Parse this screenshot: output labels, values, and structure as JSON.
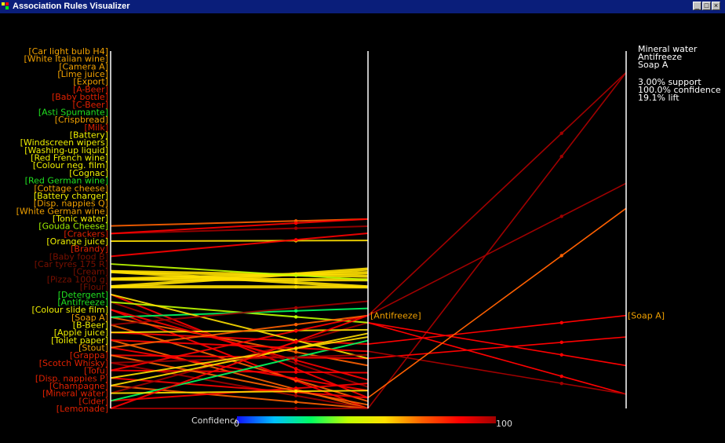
{
  "window": {
    "title": "Association Rules Visualizer",
    "buttons": [
      "_",
      "□",
      "×"
    ]
  },
  "left_items": [
    {
      "label": "Car light bulb H4",
      "color": "#f0a000"
    },
    {
      "label": "White Italian wine",
      "color": "#f0a000"
    },
    {
      "label": "Camera A",
      "color": "#f0a000"
    },
    {
      "label": "Lime juice",
      "color": "#f0a000"
    },
    {
      "label": "Export",
      "color": "#f0a000"
    },
    {
      "label": "A-Beer",
      "color": "#e02000"
    },
    {
      "label": "Baby bottle",
      "color": "#e02000"
    },
    {
      "label": "C-Beer",
      "color": "#e02000"
    },
    {
      "label": "Asti Spumante",
      "color": "#20e020"
    },
    {
      "label": "Crispbread",
      "color": "#f0a000"
    },
    {
      "label": "Milk",
      "color": "#e02000"
    },
    {
      "label": "Battery",
      "color": "#f0f000"
    },
    {
      "label": "Windscreen wipers",
      "color": "#f0f000"
    },
    {
      "label": "Washing-up liquid",
      "color": "#f0f000"
    },
    {
      "label": "Red French wine",
      "color": "#f0f000"
    },
    {
      "label": "Colour neg. film",
      "color": "#f0f000"
    },
    {
      "label": "Cognac",
      "color": "#f0f000"
    },
    {
      "label": "Red German wine",
      "color": "#20e020"
    },
    {
      "label": "Cottage cheese",
      "color": "#f0a000"
    },
    {
      "label": "Battery charger",
      "color": "#f0f000"
    },
    {
      "label": "Disp. nappies Q",
      "color": "#f0a000"
    },
    {
      "label": "White German wine",
      "color": "#f0a000"
    },
    {
      "label": "Tonic water",
      "color": "#f0f000"
    },
    {
      "label": "Gouda Cheese",
      "color": "#a0f000"
    },
    {
      "label": "Crackers",
      "color": "#e02000"
    },
    {
      "label": "Orange juice",
      "color": "#f0f000"
    },
    {
      "label": "Brandy",
      "color": "#e02000"
    },
    {
      "label": "Baby food B",
      "color": "#7a1000"
    },
    {
      "label": "Car tyres 175 R",
      "color": "#7a1000"
    },
    {
      "label": "Cream",
      "color": "#7a1000"
    },
    {
      "label": "Pizza 1000 g",
      "color": "#7a1000"
    },
    {
      "label": "Flour",
      "color": "#7a1000"
    },
    {
      "label": "Detergent",
      "color": "#20e020"
    },
    {
      "label": "Antifreeze",
      "color": "#20e020"
    },
    {
      "label": "Colour slide film",
      "color": "#f0f000"
    },
    {
      "label": "Soap A",
      "color": "#f0a000"
    },
    {
      "label": "B-Beer",
      "color": "#f0f000"
    },
    {
      "label": "Apple juice",
      "color": "#f0f000"
    },
    {
      "label": "Toilet paper",
      "color": "#f0f000"
    },
    {
      "label": "Stout",
      "color": "#f0a000"
    },
    {
      "label": "Grappa",
      "color": "#e02000"
    },
    {
      "label": "Scotch Whisky",
      "color": "#e02000"
    },
    {
      "label": "Tofu",
      "color": "#e02000"
    },
    {
      "label": "Disp. nappies P",
      "color": "#e02000"
    },
    {
      "label": "Champagne",
      "color": "#e02000"
    },
    {
      "label": "Mineral water",
      "color": "#e02000"
    },
    {
      "label": "Cider",
      "color": "#e02000"
    },
    {
      "label": "Lemonade",
      "color": "#e02000"
    }
  ],
  "middle_label": "Antifreeze",
  "right_label": "Soap A",
  "info": {
    "rule": [
      "Mineral water",
      "Antifreeze",
      "Soap A"
    ],
    "stats": [
      "3.00% support",
      "100.0% confidence",
      "19.1% lift"
    ]
  },
  "colorbar": {
    "label": "Confidence",
    "min": "0",
    "max": "100",
    "colors": [
      "#1010ff",
      "#00c0ff",
      "#00ff60",
      "#c0ff00",
      "#ffe000",
      "#ff6000",
      "#ff0000",
      "#a00000"
    ]
  },
  "rules": [
    {
      "from": 23,
      "to": 0.47,
      "conf": 70
    },
    {
      "from": 24,
      "to": 0.49,
      "conf": 95
    },
    {
      "from": 25,
      "to": 0.53,
      "conf": 60
    },
    {
      "from": 24,
      "to": 0.47,
      "conf": 90
    },
    {
      "from": 27,
      "to": 0.51,
      "conf": 85
    },
    {
      "from": 29,
      "to": 0.63,
      "conf": 55
    },
    {
      "from": 30,
      "to": 0.64,
      "conf": 55
    },
    {
      "from": 31,
      "to": 0.66,
      "conf": 58
    },
    {
      "from": 29,
      "to": 0.66,
      "conf": 52
    },
    {
      "from": 30,
      "to": 0.62,
      "conf": 56
    },
    {
      "from": 31,
      "to": 0.61,
      "conf": 54
    },
    {
      "from": 28,
      "to": 0.64,
      "conf": 45
    },
    {
      "from": 32,
      "to": 0.97,
      "conf": 88
    },
    {
      "from": 33,
      "to": 0.94,
      "conf": 95
    },
    {
      "from": 34,
      "to": 1.0,
      "conf": 80
    },
    {
      "from": 35,
      "to": 0.88,
      "conf": 70
    },
    {
      "from": 36,
      "to": 0.98,
      "conf": 65
    },
    {
      "from": 37,
      "to": 0.82,
      "conf": 92
    },
    {
      "from": 38,
      "to": 1.0,
      "conf": 75
    },
    {
      "from": 39,
      "to": 0.95,
      "conf": 85
    },
    {
      "from": 40,
      "to": 0.86,
      "conf": 90
    },
    {
      "from": 41,
      "to": 1.0,
      "conf": 95
    },
    {
      "from": 42,
      "to": 0.9,
      "conf": 92
    },
    {
      "from": 43,
      "to": 0.97,
      "conf": 88
    },
    {
      "from": 44,
      "to": 1.0,
      "conf": 70
    },
    {
      "from": 45,
      "to": 0.76,
      "conf": 100
    },
    {
      "from": 46,
      "to": 0.93,
      "conf": 80
    },
    {
      "from": 47,
      "to": 1.0,
      "conf": 96
    },
    {
      "from": 33,
      "to": 0.76,
      "conf": 40
    },
    {
      "from": 35,
      "to": 0.72,
      "conf": 35
    },
    {
      "from": 37,
      "to": 0.78,
      "conf": 60
    },
    {
      "from": 40,
      "to": 0.99,
      "conf": 75
    },
    {
      "from": 42,
      "to": 0.74,
      "conf": 90
    },
    {
      "from": 44,
      "to": 0.79,
      "conf": 50
    },
    {
      "from": 46,
      "to": 0.81,
      "conf": 30
    },
    {
      "from": 32,
      "to": 0.86,
      "conf": 60
    },
    {
      "from": 34,
      "to": 0.92,
      "conf": 85
    },
    {
      "from": 36,
      "to": 0.7,
      "conf": 95
    },
    {
      "from": 38,
      "to": 0.84,
      "conf": 90
    },
    {
      "from": 39,
      "to": 0.74,
      "conf": 75
    },
    {
      "from": 41,
      "to": 0.85,
      "conf": 100
    },
    {
      "from": 43,
      "to": 0.8,
      "conf": 62
    },
    {
      "from": 45,
      "to": 0.95,
      "conf": 55
    },
    {
      "from": 47,
      "to": 0.74,
      "conf": 88
    }
  ],
  "right_rules": [
    {
      "from": 0.74,
      "to": 0.06,
      "conf": 95
    },
    {
      "from": 0.74,
      "to": 0.37,
      "conf": 98
    },
    {
      "from": 1.0,
      "to": 0.06,
      "conf": 100
    },
    {
      "from": 0.76,
      "to": 0.96,
      "conf": 90
    },
    {
      "from": 0.82,
      "to": 0.74,
      "conf": 92
    },
    {
      "from": 0.86,
      "to": 0.8,
      "conf": 85
    },
    {
      "from": 0.76,
      "to": 0.88,
      "conf": 88
    },
    {
      "from": 0.84,
      "to": 0.96,
      "conf": 95
    },
    {
      "from": 0.97,
      "to": 0.44,
      "conf": 70
    }
  ]
}
